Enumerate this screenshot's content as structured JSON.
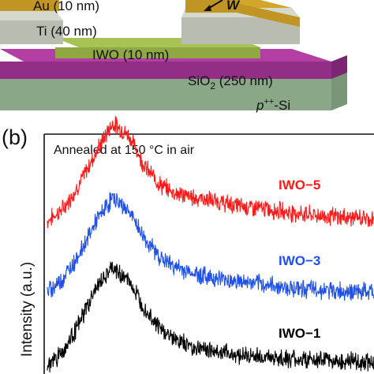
{
  "device": {
    "layers": {
      "au": "Au (10 nm)",
      "ti": "Ti (40 nm)",
      "iwo": "IWO (10 nm)",
      "sio2_main": "SiO",
      "sio2_sub": "2",
      "sio2_rest": " (250 nm)",
      "si_sup": "++",
      "si_p": "p",
      "si_rest": "-Si",
      "w": "W"
    },
    "colors": {
      "au_top": "#d1a62b",
      "au_front": "#c19524",
      "ti_top": "#d5d8cd",
      "ti_front": "#b9bcb1",
      "iwo_top": "#a9c254",
      "iwo_front": "#8fa841",
      "sio2_top": "#b33fa4",
      "sio2_front": "#922e86",
      "si_top": "#a5c1a3",
      "si_front": "#8aa788"
    }
  },
  "panel_b": {
    "label": "(b)",
    "annotation": "Annealed at 150 °C in air",
    "ylabel": "Intensity (a.u.)"
  },
  "chart_data": {
    "type": "line",
    "title": "",
    "xlabel": "",
    "ylabel": "Intensity (a.u.)",
    "annotation": "Annealed at 150 °C in air",
    "x_range": [
      0,
      100
    ],
    "grid": false,
    "legend": "inline labels right of each curve",
    "series": [
      {
        "name": "IWO−5",
        "color": "#ff1a1a",
        "offset": 2.0,
        "x": [
          0,
          5,
          10,
          15,
          20,
          25,
          30,
          35,
          40,
          45,
          50,
          55,
          60,
          65,
          70,
          75,
          80,
          85,
          90,
          95,
          100
        ],
        "values": [
          2.35,
          2.55,
          2.95,
          3.45,
          3.9,
          3.7,
          3.2,
          2.9,
          2.78,
          2.72,
          2.68,
          2.62,
          2.58,
          2.55,
          2.52,
          2.48,
          2.45,
          2.43,
          2.41,
          2.4,
          2.38
        ]
      },
      {
        "name": "IWO−3",
        "color": "#1f50e8",
        "offset": 1.0,
        "x": [
          0,
          5,
          10,
          15,
          20,
          25,
          30,
          35,
          40,
          45,
          50,
          55,
          60,
          65,
          70,
          75,
          80,
          85,
          90,
          95,
          100
        ],
        "values": [
          1.22,
          1.45,
          1.85,
          2.35,
          2.72,
          2.5,
          2.05,
          1.75,
          1.6,
          1.52,
          1.46,
          1.42,
          1.38,
          1.35,
          1.32,
          1.29,
          1.27,
          1.25,
          1.24,
          1.23,
          1.22
        ]
      },
      {
        "name": "IWO−1",
        "color": "#000000",
        "offset": 0.0,
        "x": [
          0,
          5,
          10,
          15,
          20,
          25,
          30,
          35,
          40,
          45,
          50,
          55,
          60,
          65,
          70,
          75,
          80,
          85,
          90,
          95,
          100
        ],
        "values": [
          0.05,
          0.3,
          0.75,
          1.3,
          1.6,
          1.4,
          0.95,
          0.62,
          0.45,
          0.35,
          0.3,
          0.26,
          0.22,
          0.2,
          0.18,
          0.16,
          0.15,
          0.14,
          0.13,
          0.12,
          0.12
        ]
      }
    ]
  }
}
